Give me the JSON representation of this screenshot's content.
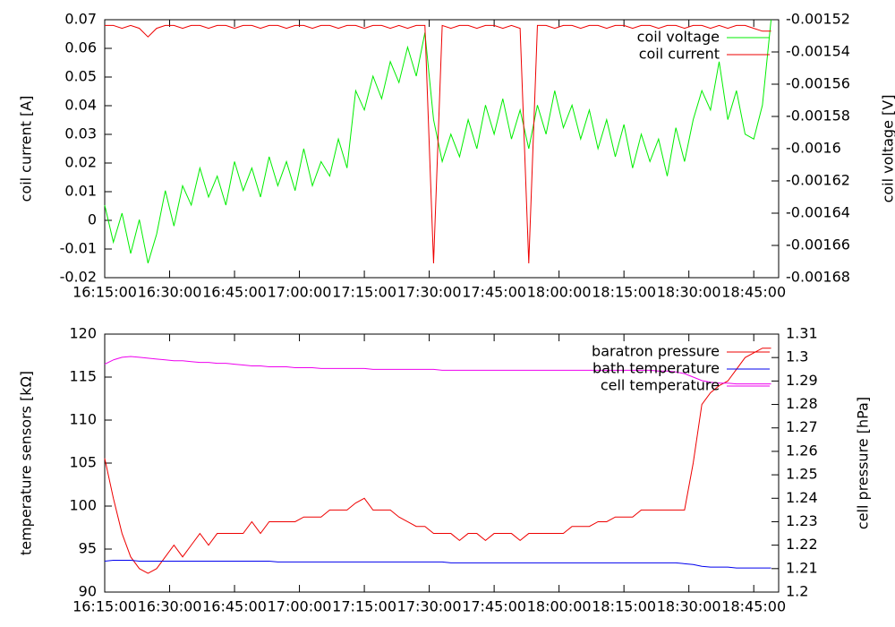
{
  "chart_data": [
    {
      "type": "line",
      "legend": "top right",
      "ylabel": "coil current [A]",
      "y2label": "coil voltage [V]",
      "x": [
        "16:15:00",
        "16:17:00",
        "16:19:00",
        "16:21:00",
        "16:23:00",
        "16:25:00",
        "16:27:00",
        "16:29:00",
        "16:31:00",
        "16:33:00",
        "16:35:00",
        "16:37:00",
        "16:39:00",
        "16:41:00",
        "16:43:00",
        "16:45:00",
        "16:47:00",
        "16:49:00",
        "16:51:00",
        "16:53:00",
        "16:55:00",
        "16:57:00",
        "16:59:00",
        "17:01:00",
        "17:03:00",
        "17:05:00",
        "17:07:00",
        "17:09:00",
        "17:11:00",
        "17:13:00",
        "17:15:00",
        "17:17:00",
        "17:19:00",
        "17:21:00",
        "17:23:00",
        "17:25:00",
        "17:27:00",
        "17:29:00",
        "17:31:00",
        "17:33:00",
        "17:35:00",
        "17:37:00",
        "17:39:00",
        "17:41:00",
        "17:43:00",
        "17:45:00",
        "17:47:00",
        "17:49:00",
        "17:51:00",
        "17:53:00",
        "17:55:00",
        "17:57:00",
        "17:59:00",
        "18:01:00",
        "18:03:00",
        "18:05:00",
        "18:07:00",
        "18:09:00",
        "18:11:00",
        "18:13:00",
        "18:15:00",
        "18:17:00",
        "18:19:00",
        "18:21:00",
        "18:23:00",
        "18:25:00",
        "18:27:00",
        "18:29:00",
        "18:31:00",
        "18:33:00",
        "18:35:00",
        "18:37:00",
        "18:39:00",
        "18:41:00",
        "18:43:00",
        "18:45:00",
        "18:47:00",
        "18:49:00"
      ],
      "xlim": [
        "16:15:00",
        "18:50:45"
      ],
      "xticks": [
        "16:15:00",
        "16:30:00",
        "16:45:00",
        "17:00:00",
        "17:15:00",
        "17:30:00",
        "17:45:00",
        "18:00:00",
        "18:15:00",
        "18:30:00",
        "18:45:00"
      ],
      "ylim": [
        -0.02,
        0.07
      ],
      "yticks": [
        -0.02,
        -0.01,
        0,
        0.01,
        0.02,
        0.03,
        0.04,
        0.05,
        0.06,
        0.07
      ],
      "y2lim": [
        -0.00168,
        -0.00152
      ],
      "y2ticks": [
        -0.00168,
        -0.00166,
        -0.00164,
        -0.00162,
        -0.0016,
        -0.00158,
        -0.00156,
        -0.00154,
        -0.00152
      ],
      "series": [
        {
          "name": "coil voltage",
          "color": "#00ee00",
          "axis": "y2",
          "values": [
            -0.001635,
            -0.001658,
            -0.00164,
            -0.001665,
            -0.001644,
            -0.001671,
            -0.001653,
            -0.001626,
            -0.001648,
            -0.001623,
            -0.001635,
            -0.001612,
            -0.00163,
            -0.001617,
            -0.001635,
            -0.001608,
            -0.001626,
            -0.001612,
            -0.00163,
            -0.001605,
            -0.001623,
            -0.001608,
            -0.001626,
            -0.0016,
            -0.001623,
            -0.001608,
            -0.001617,
            -0.001594,
            -0.001612,
            -0.001564,
            -0.001576,
            -0.001555,
            -0.001569,
            -0.001546,
            -0.001559,
            -0.001537,
            -0.001555,
            -0.001528,
            -0.001582,
            -0.001608,
            -0.001591,
            -0.001605,
            -0.001582,
            -0.0016,
            -0.001573,
            -0.001591,
            -0.001569,
            -0.001594,
            -0.001576,
            -0.0016,
            -0.001573,
            -0.001591,
            -0.001564,
            -0.001587,
            -0.001573,
            -0.001594,
            -0.001576,
            -0.0016,
            -0.001582,
            -0.001605,
            -0.001585,
            -0.001612,
            -0.001591,
            -0.001608,
            -0.001594,
            -0.001617,
            -0.001587,
            -0.001608,
            -0.001582,
            -0.001564,
            -0.001576,
            -0.001546,
            -0.001582,
            -0.001564,
            -0.001591,
            -0.001594,
            -0.001573,
            -0.00152
          ]
        },
        {
          "name": "coil current",
          "color": "#ee0000",
          "axis": "y",
          "values": [
            0.068,
            0.068,
            0.067,
            0.068,
            0.067,
            0.064,
            0.067,
            0.068,
            0.068,
            0.067,
            0.068,
            0.068,
            0.067,
            0.068,
            0.068,
            0.067,
            0.068,
            0.068,
            0.067,
            0.068,
            0.068,
            0.067,
            0.068,
            0.068,
            0.067,
            0.068,
            0.068,
            0.067,
            0.068,
            0.068,
            0.067,
            0.068,
            0.068,
            0.067,
            0.068,
            0.067,
            0.068,
            0.068,
            -0.015,
            0.068,
            0.067,
            0.068,
            0.068,
            0.067,
            0.068,
            0.068,
            0.067,
            0.068,
            0.067,
            -0.015,
            0.068,
            0.068,
            0.067,
            0.068,
            0.068,
            0.067,
            0.068,
            0.068,
            0.067,
            0.068,
            0.068,
            0.067,
            0.068,
            0.068,
            0.067,
            0.068,
            0.068,
            0.067,
            0.068,
            0.068,
            0.067,
            0.068,
            0.067,
            0.068,
            0.068,
            0.067,
            0.066,
            0.066
          ]
        }
      ]
    },
    {
      "type": "line",
      "legend": "top right",
      "ylabel": "temperature sensors [kΩ]",
      "y2label": "cell pressure [hPa]",
      "x": [
        "16:15:00",
        "16:17:00",
        "16:19:00",
        "16:21:00",
        "16:23:00",
        "16:25:00",
        "16:27:00",
        "16:29:00",
        "16:31:00",
        "16:33:00",
        "16:35:00",
        "16:37:00",
        "16:39:00",
        "16:41:00",
        "16:43:00",
        "16:45:00",
        "16:47:00",
        "16:49:00",
        "16:51:00",
        "16:53:00",
        "16:55:00",
        "16:57:00",
        "16:59:00",
        "17:01:00",
        "17:03:00",
        "17:05:00",
        "17:07:00",
        "17:09:00",
        "17:11:00",
        "17:13:00",
        "17:15:00",
        "17:17:00",
        "17:19:00",
        "17:21:00",
        "17:23:00",
        "17:25:00",
        "17:27:00",
        "17:29:00",
        "17:31:00",
        "17:33:00",
        "17:35:00",
        "17:37:00",
        "17:39:00",
        "17:41:00",
        "17:43:00",
        "17:45:00",
        "17:47:00",
        "17:49:00",
        "17:51:00",
        "17:53:00",
        "17:55:00",
        "17:57:00",
        "17:59:00",
        "18:01:00",
        "18:03:00",
        "18:05:00",
        "18:07:00",
        "18:09:00",
        "18:11:00",
        "18:13:00",
        "18:15:00",
        "18:17:00",
        "18:19:00",
        "18:21:00",
        "18:23:00",
        "18:25:00",
        "18:27:00",
        "18:29:00",
        "18:31:00",
        "18:33:00",
        "18:35:00",
        "18:37:00",
        "18:39:00",
        "18:41:00",
        "18:43:00",
        "18:45:00",
        "18:47:00",
        "18:49:00"
      ],
      "xlim": [
        "16:15:00",
        "18:50:45"
      ],
      "xticks": [
        "16:15:00",
        "16:30:00",
        "16:45:00",
        "17:00:00",
        "17:15:00",
        "17:30:00",
        "17:45:00",
        "18:00:00",
        "18:15:00",
        "18:30:00",
        "18:45:00"
      ],
      "ylim": [
        90,
        120
      ],
      "yticks": [
        90,
        95,
        100,
        105,
        110,
        115,
        120
      ],
      "y2lim": [
        1.2,
        1.31
      ],
      "y2ticks": [
        1.2,
        1.21,
        1.22,
        1.23,
        1.24,
        1.25,
        1.26,
        1.27,
        1.28,
        1.29,
        1.3,
        1.31
      ],
      "series": [
        {
          "name": "baratron pressure",
          "color": "#ee0000",
          "axis": "y2",
          "values": [
            1.257,
            1.24,
            1.225,
            1.215,
            1.21,
            1.208,
            1.21,
            1.215,
            1.22,
            1.215,
            1.22,
            1.225,
            1.22,
            1.225,
            1.225,
            1.225,
            1.225,
            1.23,
            1.225,
            1.23,
            1.23,
            1.23,
            1.23,
            1.232,
            1.232,
            1.232,
            1.235,
            1.235,
            1.235,
            1.238,
            1.24,
            1.235,
            1.235,
            1.235,
            1.232,
            1.23,
            1.228,
            1.228,
            1.225,
            1.225,
            1.225,
            1.222,
            1.225,
            1.225,
            1.222,
            1.225,
            1.225,
            1.225,
            1.222,
            1.225,
            1.225,
            1.225,
            1.225,
            1.225,
            1.228,
            1.228,
            1.228,
            1.23,
            1.23,
            1.232,
            1.232,
            1.232,
            1.235,
            1.235,
            1.235,
            1.235,
            1.235,
            1.235,
            1.255,
            1.28,
            1.285,
            1.288,
            1.29,
            1.295,
            1.3,
            1.302,
            1.304,
            1.304
          ]
        },
        {
          "name": "bath temperature",
          "color": "#0000ee",
          "axis": "y",
          "values": [
            93.6,
            93.7,
            93.7,
            93.7,
            93.6,
            93.6,
            93.6,
            93.6,
            93.6,
            93.6,
            93.6,
            93.6,
            93.6,
            93.6,
            93.6,
            93.6,
            93.6,
            93.6,
            93.6,
            93.6,
            93.5,
            93.5,
            93.5,
            93.5,
            93.5,
            93.5,
            93.5,
            93.5,
            93.5,
            93.5,
            93.5,
            93.5,
            93.5,
            93.5,
            93.5,
            93.5,
            93.5,
            93.5,
            93.5,
            93.5,
            93.4,
            93.4,
            93.4,
            93.4,
            93.4,
            93.4,
            93.4,
            93.4,
            93.4,
            93.4,
            93.4,
            93.4,
            93.4,
            93.4,
            93.4,
            93.4,
            93.4,
            93.4,
            93.4,
            93.4,
            93.4,
            93.4,
            93.4,
            93.4,
            93.4,
            93.4,
            93.4,
            93.3,
            93.2,
            93.0,
            92.9,
            92.9,
            92.9,
            92.8,
            92.8,
            92.8,
            92.8,
            92.8
          ]
        },
        {
          "name": "cell temperature",
          "color": "#ee00ee",
          "axis": "y",
          "values": [
            116.5,
            117.0,
            117.3,
            117.4,
            117.3,
            117.2,
            117.1,
            117.0,
            116.9,
            116.9,
            116.8,
            116.7,
            116.7,
            116.6,
            116.6,
            116.5,
            116.4,
            116.3,
            116.3,
            116.2,
            116.2,
            116.2,
            116.1,
            116.1,
            116.1,
            116.0,
            116.0,
            116.0,
            116.0,
            116.0,
            116.0,
            115.9,
            115.9,
            115.9,
            115.9,
            115.9,
            115.9,
            115.9,
            115.9,
            115.8,
            115.8,
            115.8,
            115.8,
            115.8,
            115.8,
            115.8,
            115.8,
            115.8,
            115.8,
            115.8,
            115.8,
            115.8,
            115.8,
            115.8,
            115.8,
            115.8,
            115.8,
            115.8,
            115.8,
            115.8,
            115.8,
            115.8,
            115.8,
            115.8,
            115.7,
            115.7,
            115.6,
            115.4,
            115.0,
            114.6,
            114.4,
            114.3,
            114.3,
            114.2,
            114.2,
            114.2,
            114.2,
            114.2
          ]
        }
      ]
    }
  ]
}
